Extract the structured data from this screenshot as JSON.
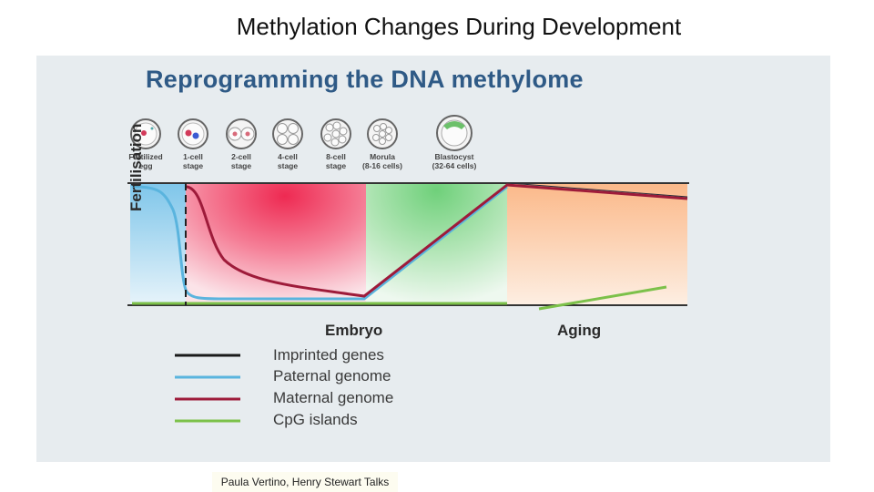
{
  "slide": {
    "title": "Methylation Changes During Development",
    "credit": "Paula Vertino, Henry Stewart Talks"
  },
  "figure": {
    "title": "Reprogramming the DNA methylome",
    "stages": [
      {
        "line1": "Fertilized",
        "line2": "egg",
        "icon": "fertilized-egg-icon"
      },
      {
        "line1": "1-cell",
        "line2": "stage",
        "icon": "one-cell-icon"
      },
      {
        "line1": "2-cell",
        "line2": "stage",
        "icon": "two-cell-icon"
      },
      {
        "line1": "4-cell",
        "line2": "stage",
        "icon": "four-cell-icon"
      },
      {
        "line1": "8-cell",
        "line2": "stage",
        "icon": "eight-cell-icon"
      },
      {
        "line1": "Morula",
        "line2": "(8-16 cells)",
        "icon": "morula-icon"
      },
      {
        "line1": "Blastocyst",
        "line2": "(32-64 cells)",
        "icon": "blastocyst-icon"
      }
    ],
    "fertilisation_label": "Fertilisation",
    "phase_labels": {
      "embryo": "Embryo",
      "aging": "Aging"
    },
    "legend": [
      {
        "label": "Imprinted genes",
        "color": "#1a1a1a"
      },
      {
        "label": "Paternal genome",
        "color": "#5ab4de"
      },
      {
        "label": "Maternal genome",
        "color": "#9e1b3a"
      },
      {
        "label": "CpG islands",
        "color": "#7cc14a"
      }
    ]
  }
}
